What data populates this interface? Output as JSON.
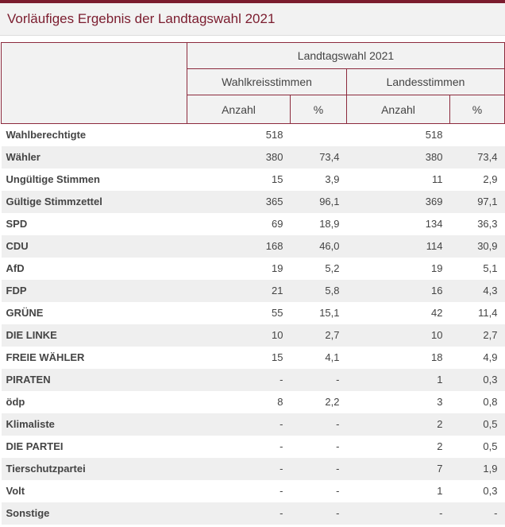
{
  "title": "Vorläufiges Ergebnis der Landtagswahl 2021",
  "header": {
    "group": "Landtagswahl 2021",
    "wk": "Wahlkreisstimmen",
    "ls": "Landesstimmen",
    "anzahl": "Anzahl",
    "pct": "%"
  },
  "rows": [
    {
      "label": "Wahlberechtigte",
      "wk_n": "518",
      "wk_p": "",
      "ls_n": "518",
      "ls_p": ""
    },
    {
      "label": "Wähler",
      "wk_n": "380",
      "wk_p": "73,4",
      "ls_n": "380",
      "ls_p": "73,4"
    },
    {
      "label": "Ungültige Stimmen",
      "wk_n": "15",
      "wk_p": "3,9",
      "ls_n": "11",
      "ls_p": "2,9"
    },
    {
      "label": "Gültige Stimmzettel",
      "wk_n": "365",
      "wk_p": "96,1",
      "ls_n": "369",
      "ls_p": "97,1"
    },
    {
      "label": "SPD",
      "wk_n": "69",
      "wk_p": "18,9",
      "ls_n": "134",
      "ls_p": "36,3"
    },
    {
      "label": "CDU",
      "wk_n": "168",
      "wk_p": "46,0",
      "ls_n": "114",
      "ls_p": "30,9"
    },
    {
      "label": "AfD",
      "wk_n": "19",
      "wk_p": "5,2",
      "ls_n": "19",
      "ls_p": "5,1"
    },
    {
      "label": "FDP",
      "wk_n": "21",
      "wk_p": "5,8",
      "ls_n": "16",
      "ls_p": "4,3"
    },
    {
      "label": "GRÜNE",
      "wk_n": "55",
      "wk_p": "15,1",
      "ls_n": "42",
      "ls_p": "11,4"
    },
    {
      "label": "DIE LINKE",
      "wk_n": "10",
      "wk_p": "2,7",
      "ls_n": "10",
      "ls_p": "2,7"
    },
    {
      "label": "FREIE WÄHLER",
      "wk_n": "15",
      "wk_p": "4,1",
      "ls_n": "18",
      "ls_p": "4,9"
    },
    {
      "label": "PIRATEN",
      "wk_n": "-",
      "wk_p": "-",
      "ls_n": "1",
      "ls_p": "0,3"
    },
    {
      "label": "ödp",
      "wk_n": "8",
      "wk_p": "2,2",
      "ls_n": "3",
      "ls_p": "0,8"
    },
    {
      "label": "Klimaliste",
      "wk_n": "-",
      "wk_p": "-",
      "ls_n": "2",
      "ls_p": "0,5"
    },
    {
      "label": "DIE PARTEI",
      "wk_n": "-",
      "wk_p": "-",
      "ls_n": "2",
      "ls_p": "0,5"
    },
    {
      "label": "Tierschutzpartei",
      "wk_n": "-",
      "wk_p": "-",
      "ls_n": "7",
      "ls_p": "1,9"
    },
    {
      "label": "Volt",
      "wk_n": "-",
      "wk_p": "-",
      "ls_n": "1",
      "ls_p": "0,3"
    },
    {
      "label": "Sonstige",
      "wk_n": "-",
      "wk_p": "-",
      "ls_n": "-",
      "ls_p": "-"
    }
  ]
}
